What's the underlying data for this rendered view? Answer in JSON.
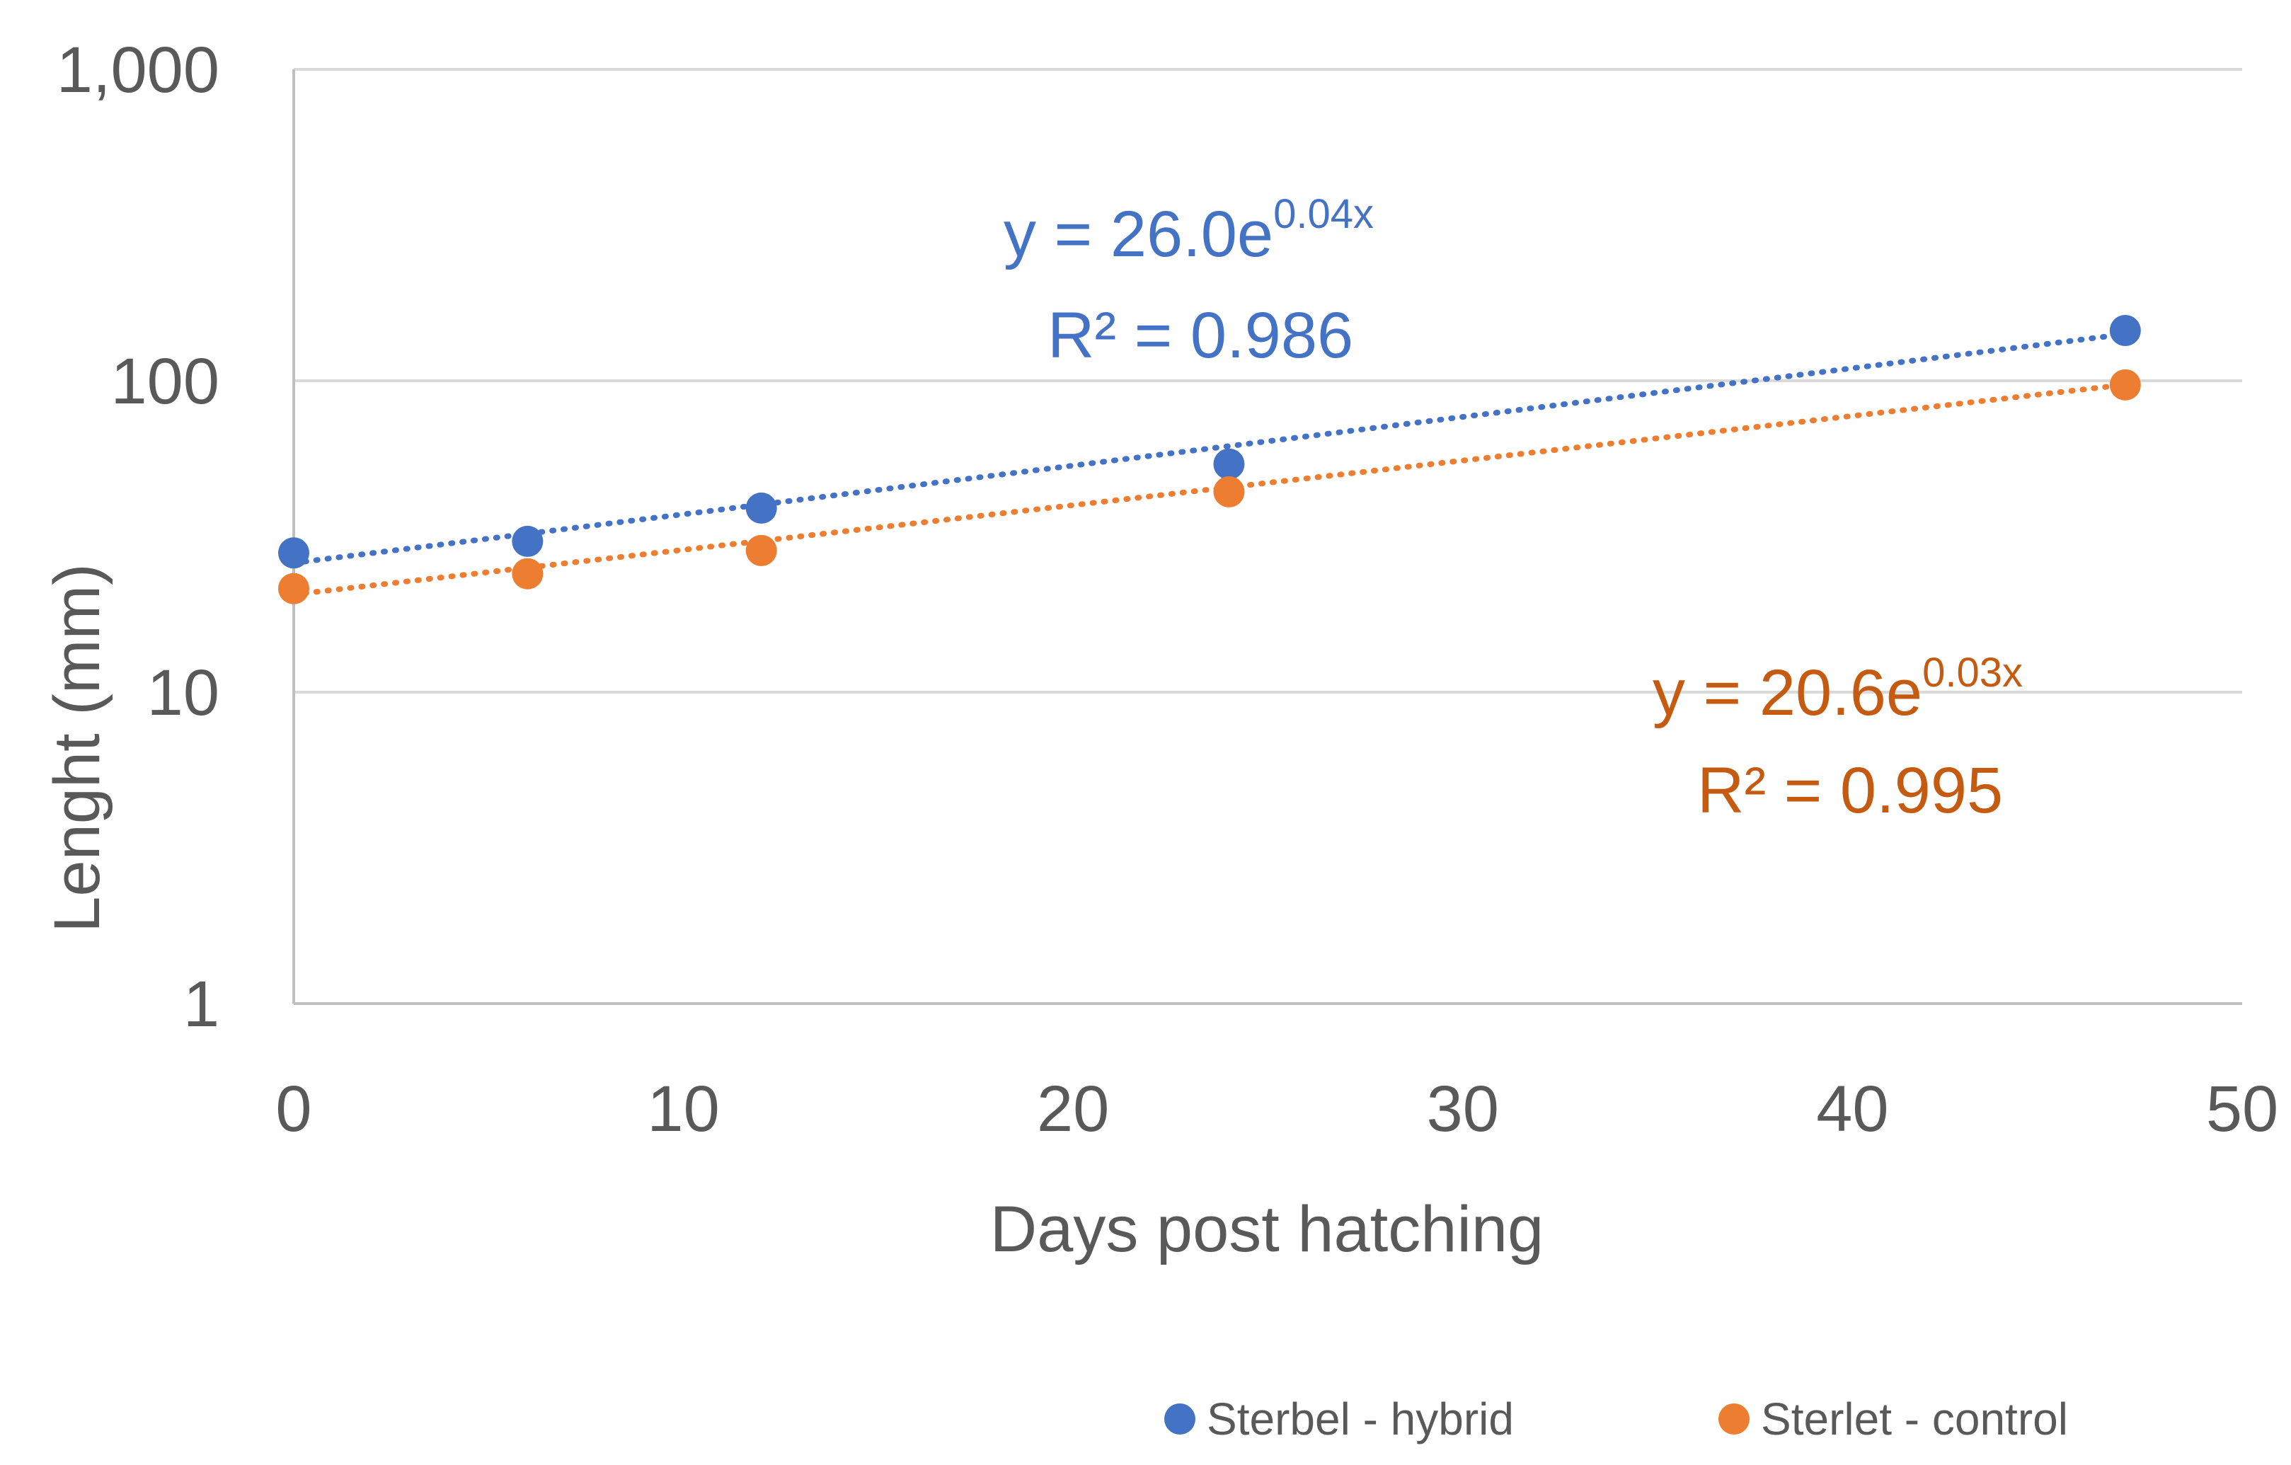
{
  "chart_data": {
    "type": "scatter",
    "title": "",
    "xlabel": "Days post hatching",
    "ylabel": "Lenght (mm)",
    "xlim": [
      0,
      50
    ],
    "ylim": [
      1,
      1000
    ],
    "yscale": "log",
    "xticks": [
      0,
      10,
      20,
      30,
      40,
      50
    ],
    "xtick_labels": [
      "0",
      "10",
      "20",
      "30",
      "40",
      "50"
    ],
    "yticks": [
      1,
      10,
      100,
      1000
    ],
    "ytick_labels": [
      "1",
      "10",
      "100",
      "1,000"
    ],
    "grid": true,
    "legend_position": "bottom-right",
    "series": [
      {
        "name": "Sterbel - hybrid",
        "color": "#4472C4",
        "label_color": "#4472C4",
        "x": [
          0,
          6,
          12,
          24,
          47
        ],
        "values": [
          28,
          30.5,
          39,
          54,
          145
        ],
        "trendline": {
          "type": "exponential",
          "a": 26.0,
          "b": 0.036,
          "equation_main": "y = 26.0e",
          "equation_exp": "0.04x",
          "r2_label": "R² = 0.986"
        }
      },
      {
        "name": "Sterlet - control",
        "color": "#ED7D31",
        "label_color": "#C55A11",
        "x": [
          0,
          6,
          12,
          24,
          47
        ],
        "values": [
          21.5,
          24,
          28.5,
          44,
          97
        ],
        "trendline": {
          "type": "exponential",
          "a": 20.6,
          "b": 0.033,
          "equation_main": "y = 20.6e",
          "equation_exp": "0.03x",
          "r2_label": "R² = 0.995"
        }
      }
    ]
  }
}
